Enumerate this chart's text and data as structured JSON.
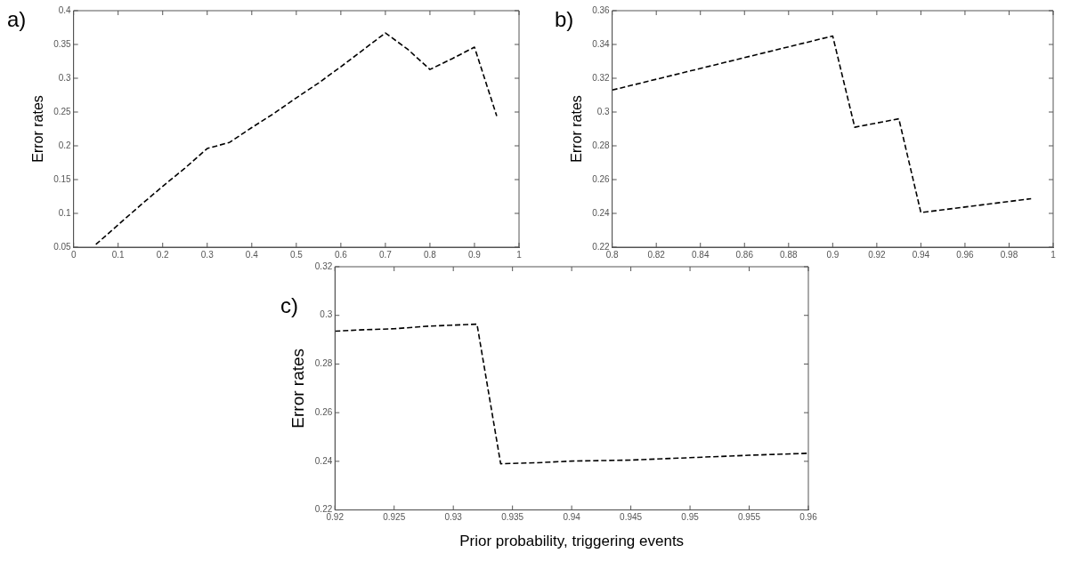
{
  "chart_data": [
    {
      "type": "line",
      "title": "a)",
      "ylabel": "Error rates",
      "x": [
        0.05,
        0.1,
        0.15,
        0.2,
        0.25,
        0.3,
        0.35,
        0.4,
        0.45,
        0.5,
        0.55,
        0.6,
        0.65,
        0.7,
        0.75,
        0.8,
        0.85,
        0.9,
        0.95
      ],
      "series": [
        {
          "color": "#000000",
          "values": [
            0.054,
            0.083,
            0.112,
            0.14,
            0.167,
            0.196,
            0.205,
            0.227,
            0.248,
            0.271,
            0.293,
            0.317,
            0.342,
            0.367,
            0.343,
            0.313,
            0.329,
            0.346,
            0.244
          ]
        }
      ],
      "xlim": [
        0,
        1
      ],
      "xticks": [
        0,
        0.1,
        0.2,
        0.3,
        0.4,
        0.5,
        0.6,
        0.7,
        0.8,
        0.9,
        1
      ],
      "ylim": [
        0.05,
        0.4
      ],
      "yticks": [
        0.05,
        0.1,
        0.15,
        0.2,
        0.25,
        0.3,
        0.35,
        0.4
      ],
      "grid": false,
      "legend": false,
      "marker": "none",
      "line_style": "dashed"
    },
    {
      "type": "line",
      "title": "b)",
      "ylabel": "Error rates",
      "x": [
        0.8,
        0.9,
        0.91,
        0.93,
        0.94,
        0.99
      ],
      "series": [
        {
          "color": "#000000",
          "values": [
            0.313,
            0.345,
            0.291,
            0.296,
            0.2405,
            0.2487
          ]
        }
      ],
      "xlim": [
        0.8,
        1
      ],
      "xticks": [
        0.8,
        0.82,
        0.84,
        0.86,
        0.88,
        0.9,
        0.92,
        0.94,
        0.96,
        0.98,
        1
      ],
      "ylim": [
        0.22,
        0.36
      ],
      "yticks": [
        0.22,
        0.24,
        0.26,
        0.28,
        0.3,
        0.32,
        0.34,
        0.36
      ],
      "grid": false,
      "legend": false,
      "marker": "none",
      "line_style": "dashed"
    },
    {
      "type": "line",
      "title": "c)",
      "xlabel": "Prior probability, triggering events",
      "ylabel": "Error rates",
      "x": [
        0.92,
        0.922,
        0.925,
        0.928,
        0.932,
        0.934,
        0.937,
        0.94,
        0.945,
        0.95,
        0.955,
        0.96
      ],
      "series": [
        {
          "color": "#000000",
          "values": [
            0.2935,
            0.294,
            0.2945,
            0.2956,
            0.2964,
            0.239,
            0.2394,
            0.2401,
            0.2405,
            0.2415,
            0.2425,
            0.2433
          ]
        }
      ],
      "xlim": [
        0.92,
        0.96
      ],
      "xticks": [
        0.92,
        0.925,
        0.93,
        0.935,
        0.94,
        0.945,
        0.95,
        0.955,
        0.96
      ],
      "ylim": [
        0.22,
        0.32
      ],
      "yticks": [
        0.22,
        0.24,
        0.26,
        0.28,
        0.3,
        0.32
      ],
      "grid": false,
      "legend": false,
      "marker": "none",
      "line_style": "dashed"
    }
  ]
}
